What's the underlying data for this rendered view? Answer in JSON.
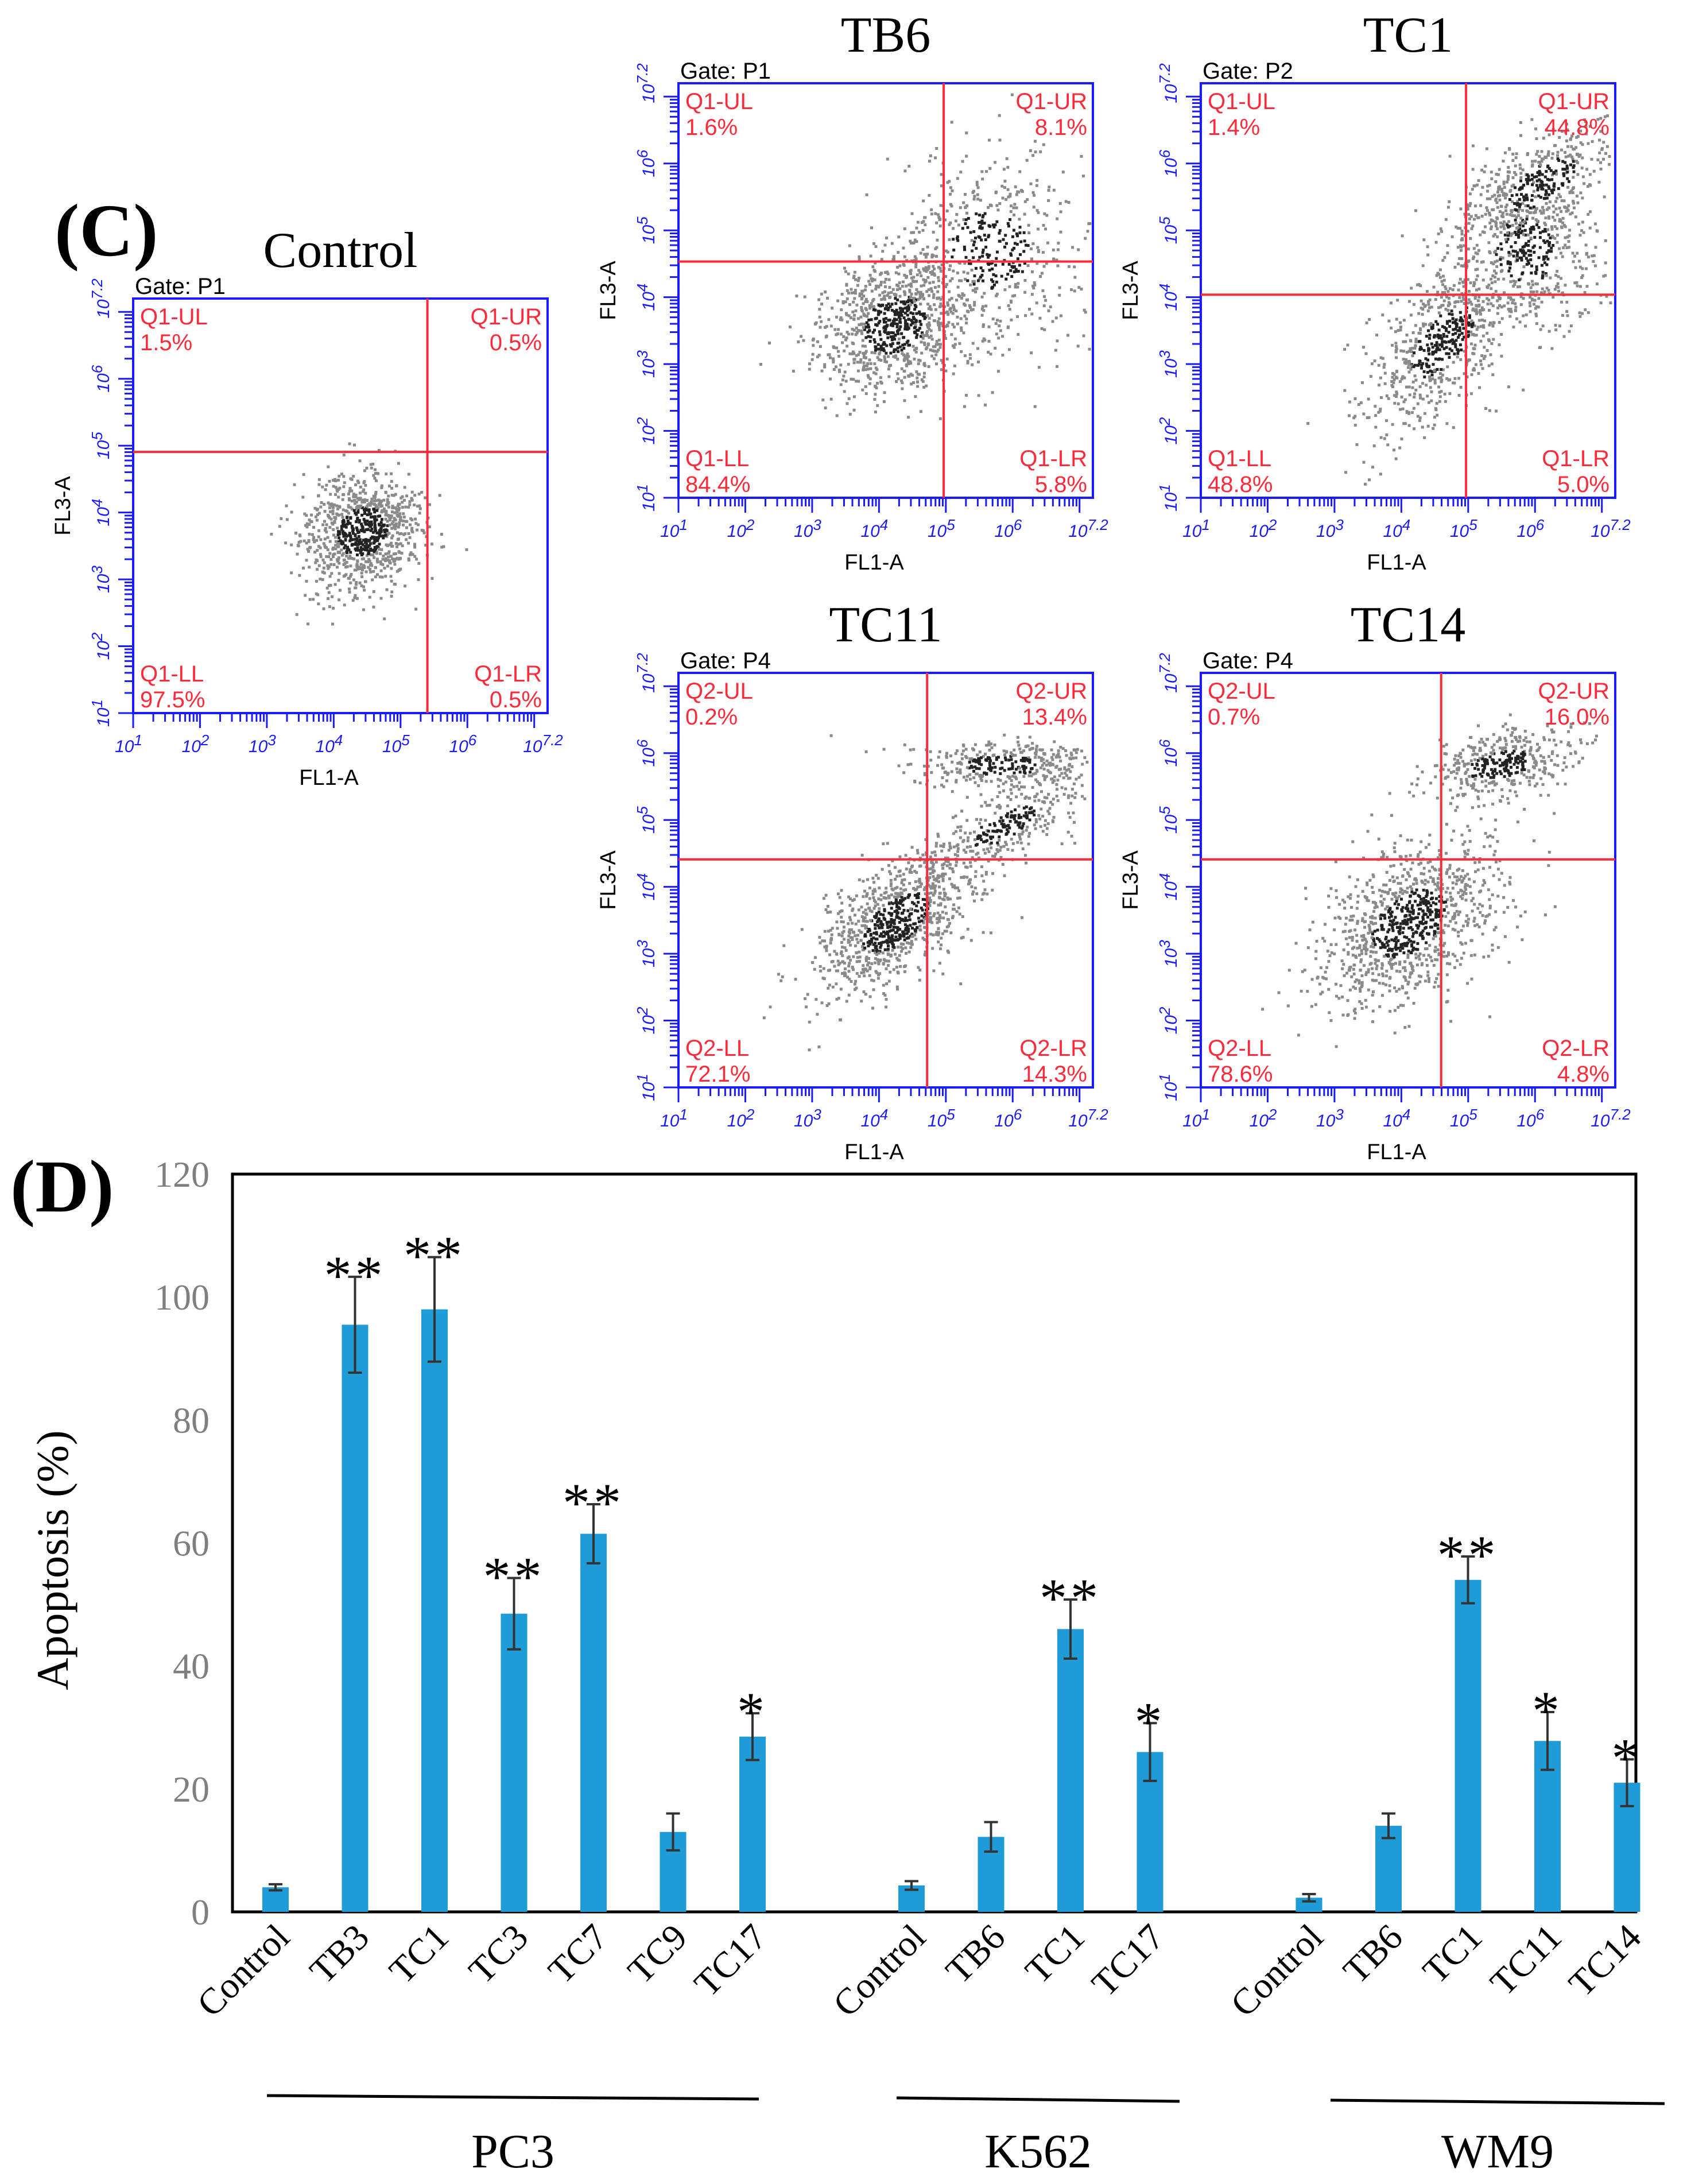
{
  "panel_labels": {
    "c": "(C)",
    "d": "(D)"
  },
  "flow_plots": [
    {
      "title": "Control",
      "gate": "Gate: P1",
      "xlabel": "FL1-A",
      "ylabel": "FL3-A",
      "quadrants": [
        {
          "name": "Q1-UL",
          "value": "1.5%"
        },
        {
          "name": "Q1-UR",
          "value": "0.5%"
        },
        {
          "name": "Q1-LL",
          "value": "97.5%"
        },
        {
          "name": "Q1-LR",
          "value": "0.5%"
        }
      ],
      "x_ticks": [
        "10 1",
        "10 2",
        "10 3",
        "10 4",
        "10 5",
        "10 6",
        "10 7.2"
      ],
      "y_ticks": [
        "10 1",
        "10 2",
        "10 3",
        "10 4",
        "10 5",
        "10 6",
        "10 7.2"
      ]
    },
    {
      "title": "TB6",
      "gate": "Gate: P1",
      "xlabel": "FL1-A",
      "ylabel": "FL3-A",
      "quadrants": [
        {
          "name": "Q1-UL",
          "value": "1.6%"
        },
        {
          "name": "Q1-UR",
          "value": "8.1%"
        },
        {
          "name": "Q1-LL",
          "value": "84.4%"
        },
        {
          "name": "Q1-LR",
          "value": "5.8%"
        }
      ],
      "x_ticks": [
        "10 1",
        "10 2",
        "10 3",
        "10 4",
        "10 5",
        "10 6",
        "10 7.2"
      ],
      "y_ticks": [
        "10 1",
        "10 2",
        "10 3",
        "10 4",
        "10 5",
        "10 6",
        "10 7.2"
      ]
    },
    {
      "title": "TC1",
      "gate": "Gate: P2",
      "xlabel": "FL1-A",
      "ylabel": "FL3-A",
      "quadrants": [
        {
          "name": "Q1-UL",
          "value": "1.4%"
        },
        {
          "name": "Q1-UR",
          "value": "44.8%"
        },
        {
          "name": "Q1-LL",
          "value": "48.8%"
        },
        {
          "name": "Q1-LR",
          "value": "5.0%"
        }
      ],
      "x_ticks": [
        "10 1",
        "10 2",
        "10 3",
        "10 4",
        "10 5",
        "10 6",
        "10 7.2"
      ],
      "y_ticks": [
        "10 1",
        "10 2",
        "10 3",
        "10 4",
        "10 5",
        "10 6",
        "10 7.2"
      ]
    },
    {
      "title": "TC11",
      "gate": "Gate: P4",
      "xlabel": "FL1-A",
      "ylabel": "FL3-A",
      "quadrants": [
        {
          "name": "Q2-UL",
          "value": "0.2%"
        },
        {
          "name": "Q2-UR",
          "value": "13.4%"
        },
        {
          "name": "Q2-LL",
          "value": "72.1%"
        },
        {
          "name": "Q2-LR",
          "value": "14.3%"
        }
      ],
      "x_ticks": [
        "10 1",
        "10 2",
        "10 3",
        "10 4",
        "10 5",
        "10 6",
        "10 7.2"
      ],
      "y_ticks": [
        "10 1",
        "10 2",
        "10 3",
        "10 4",
        "10 5",
        "10 6",
        "10 7.2"
      ]
    },
    {
      "title": "TC14",
      "gate": "Gate: P4",
      "xlabel": "FL1-A",
      "ylabel": "FL3-A",
      "quadrants": [
        {
          "name": "Q2-UL",
          "value": "0.7%"
        },
        {
          "name": "Q2-UR",
          "value": "16.0%"
        },
        {
          "name": "Q2-LL",
          "value": "78.6%"
        },
        {
          "name": "Q2-LR",
          "value": "4.8%"
        }
      ],
      "x_ticks": [
        "10 1",
        "10 2",
        "10 3",
        "10 4",
        "10 5",
        "10 6",
        "10 7.2"
      ],
      "y_ticks": [
        "10 1",
        "10 2",
        "10 3",
        "10 4",
        "10 5",
        "10 6",
        "10 7.2"
      ]
    }
  ],
  "chart_data": {
    "type": "bar",
    "title": "",
    "xlabel": "",
    "ylabel": "Apoptosis (%)",
    "ylim": [
      0,
      120
    ],
    "yticks": [
      0,
      20,
      40,
      60,
      80,
      100,
      120
    ],
    "grid": false,
    "bar_color": "#1f9bd7",
    "groups": [
      {
        "name": "PC3",
        "categories": [
          "Control",
          "TB3",
          "TC1",
          "TC3",
          "TC7",
          "TC9",
          "TC17"
        ],
        "values": [
          4,
          95.5,
          98,
          48.5,
          61.5,
          13,
          28.5
        ],
        "errors": [
          0.5,
          7.8,
          8.5,
          5.8,
          4.8,
          3,
          3.8
        ],
        "significance": [
          "",
          "**",
          "**",
          "**",
          "**",
          "",
          "*"
        ]
      },
      {
        "name": "K562",
        "categories": [
          "Control",
          "TB6",
          "TC1",
          "TC17"
        ],
        "values": [
          4.3,
          12.2,
          46,
          26
        ],
        "errors": [
          0.7,
          2.4,
          4.8,
          4.7
        ],
        "significance": [
          "",
          "",
          "**",
          "*"
        ]
      },
      {
        "name": "WM9",
        "categories": [
          "Control",
          "TB6",
          "TC1",
          "TC11",
          "TC14"
        ],
        "values": [
          2.3,
          14,
          54,
          27.8,
          21
        ],
        "errors": [
          0.6,
          2,
          3.8,
          4.7,
          3.8
        ],
        "significance": [
          "",
          "",
          "**",
          "*",
          "*"
        ]
      }
    ]
  }
}
